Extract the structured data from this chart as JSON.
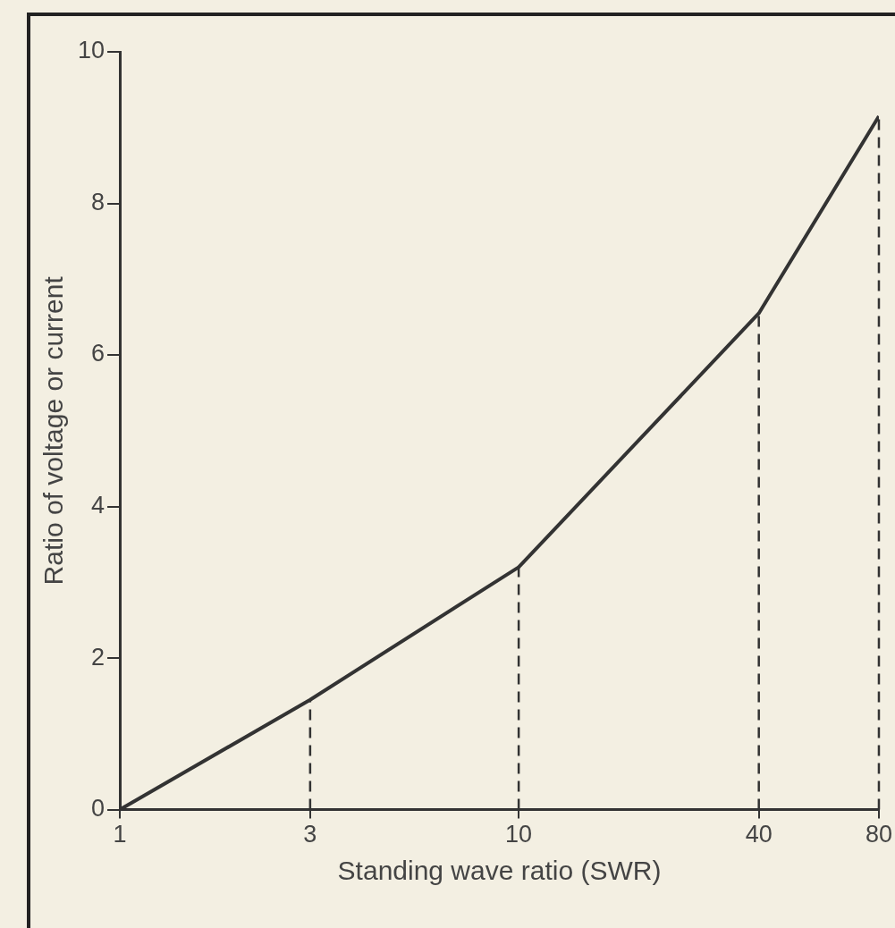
{
  "chart_data": {
    "type": "line",
    "xlabel": "Standing wave ratio (SWR)",
    "ylabel": "Ratio of voltage or current",
    "x": [
      1,
      3,
      10,
      40,
      80
    ],
    "series": [
      {
        "color": "#333333",
        "values": [
          0,
          1.45,
          3.2,
          6.55,
          9.15
        ]
      }
    ],
    "log": "x",
    "xlim": [
      1,
      80
    ],
    "xticks": [
      1,
      3,
      10,
      40,
      80
    ],
    "ylim": [
      0,
      10
    ],
    "yticks": [
      0,
      2,
      4,
      6,
      8,
      10
    ],
    "ref_lines": [
      {
        "axis": "x",
        "value": 3,
        "line_style": "dashed",
        "color": "#333333"
      },
      {
        "axis": "x",
        "value": 10,
        "line_style": "dashed",
        "color": "#333333"
      },
      {
        "axis": "x",
        "value": 40,
        "line_style": "dashed",
        "color": "#333333"
      },
      {
        "axis": "x",
        "value": 80,
        "line_style": "dashed",
        "color": "#333333"
      }
    ],
    "grid": false,
    "legend": false,
    "marker": "none",
    "line_style": "solid"
  }
}
